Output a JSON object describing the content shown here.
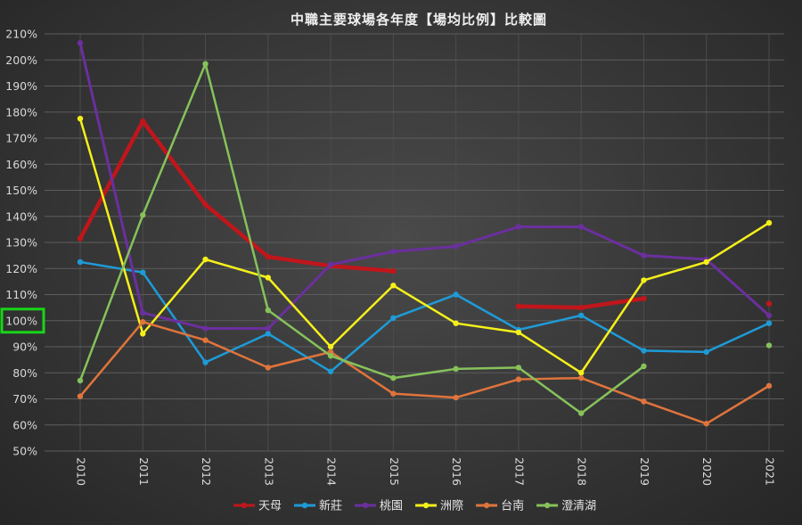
{
  "chart_data": {
    "type": "line",
    "title": "中職主要球場各年度【場均比例】比較圖",
    "x": [
      "2010",
      "2011",
      "2012",
      "2013",
      "2014",
      "2015",
      "2016",
      "2017",
      "2018",
      "2019",
      "2020",
      "2021"
    ],
    "y_ticks": [
      "50%",
      "60%",
      "70%",
      "80%",
      "90%",
      "100%",
      "110%",
      "120%",
      "130%",
      "140%",
      "150%",
      "160%",
      "170%",
      "180%",
      "190%",
      "200%",
      "210%"
    ],
    "ylim": [
      50,
      210
    ],
    "grid": true,
    "legend_position": "bottom",
    "highlight_tick": "100%",
    "highlight_color": "#19d419",
    "series": [
      {
        "name": "天母",
        "color": "#c0161b",
        "width": 4.5,
        "values": [
          131.5,
          176.5,
          144.5,
          124.5,
          121,
          119,
          null,
          105.5,
          105,
          108.5,
          null,
          106.5
        ]
      },
      {
        "name": "新莊",
        "color": "#1e9bd7",
        "width": 2.5,
        "values": [
          122.5,
          118.5,
          84,
          95,
          80.5,
          101,
          110,
          96.5,
          102,
          88.5,
          88,
          99
        ]
      },
      {
        "name": "桃園",
        "color": "#6b2f9e",
        "width": 3,
        "values": [
          206.5,
          103,
          97,
          97,
          121.5,
          126.5,
          128.5,
          136,
          136,
          125,
          123.5,
          102
        ]
      },
      {
        "name": "洲際",
        "color": "#f5f01a",
        "width": 2.5,
        "values": [
          177.5,
          95,
          123.5,
          116.5,
          90,
          113.5,
          99,
          95.5,
          80,
          115.5,
          122.5,
          137.5
        ]
      },
      {
        "name": "台南",
        "color": "#e0743c",
        "width": 2.5,
        "values": [
          71,
          99.5,
          92.5,
          82,
          88,
          72,
          70.5,
          77.5,
          78,
          69,
          60.5,
          75
        ]
      },
      {
        "name": "澄清湖",
        "color": "#86c25a",
        "width": 2.5,
        "values": [
          77,
          140.5,
          198.5,
          104,
          86.5,
          78,
          81.5,
          82,
          64.5,
          82.5,
          null,
          90.5
        ]
      }
    ]
  }
}
